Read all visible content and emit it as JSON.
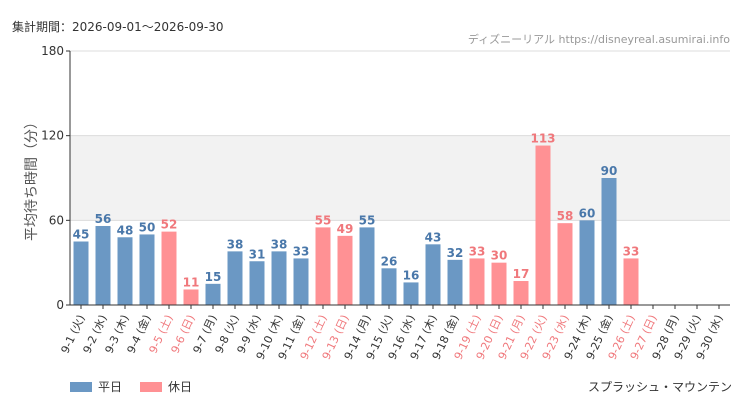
{
  "header": {
    "period_label": "集計期間：2026-09-01～2026-09-30",
    "credit": "ディズニーリアル https://disneyreal.asumirai.info"
  },
  "footer": {
    "attraction": "スプラッシュ・マウンテン"
  },
  "colors": {
    "weekday": "#6b98c4",
    "holiday": "#ff9194",
    "weekday_text": "#4a78aa",
    "holiday_text": "#f0787c"
  },
  "chart_data": {
    "type": "bar",
    "ylabel": "平均待ち時間（分）",
    "ylim": [
      0,
      180
    ],
    "yticks": [
      0,
      60,
      120,
      180
    ],
    "shaded_bands": [
      [
        60,
        120
      ]
    ],
    "categories": [
      "9-1 (火)",
      "9-2 (水)",
      "9-3 (木)",
      "9-4 (金)",
      "9-5 (土)",
      "9-6 (日)",
      "9-7 (月)",
      "9-8 (火)",
      "9-9 (水)",
      "9-10 (木)",
      "9-11 (金)",
      "9-12 (土)",
      "9-13 (日)",
      "9-14 (月)",
      "9-15 (火)",
      "9-16 (水)",
      "9-17 (木)",
      "9-18 (金)",
      "9-19 (土)",
      "9-20 (日)",
      "9-21 (月)",
      "9-22 (火)",
      "9-23 (水)",
      "9-24 (木)",
      "9-25 (金)",
      "9-26 (土)",
      "9-27 (日)",
      "9-28 (月)",
      "9-29 (火)",
      "9-30 (水)"
    ],
    "values": [
      45,
      56,
      48,
      50,
      52,
      11,
      15,
      38,
      31,
      38,
      33,
      55,
      49,
      55,
      26,
      16,
      43,
      32,
      33,
      30,
      17,
      113,
      58,
      60,
      90,
      33,
      null,
      null,
      null,
      null
    ],
    "day_type": [
      "平日",
      "平日",
      "平日",
      "平日",
      "休日",
      "休日",
      "平日",
      "平日",
      "平日",
      "平日",
      "平日",
      "休日",
      "休日",
      "平日",
      "平日",
      "平日",
      "平日",
      "平日",
      "休日",
      "休日",
      "休日",
      "休日",
      "休日",
      "平日",
      "平日",
      "休日",
      "休日",
      "平日",
      "平日",
      "平日"
    ],
    "legend": [
      {
        "name": "平日",
        "color": "#6b98c4"
      },
      {
        "name": "休日",
        "color": "#ff9194"
      }
    ],
    "legend_position": "bottom-left",
    "grid": true
  }
}
